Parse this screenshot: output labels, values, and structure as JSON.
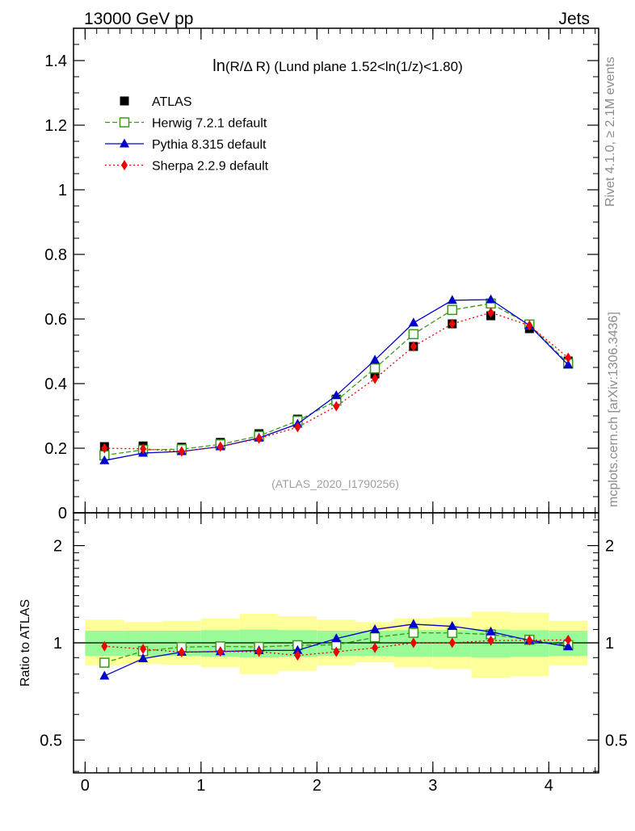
{
  "header": {
    "left": "13000 GeV pp",
    "right": "Jets"
  },
  "side_labels": {
    "rivet": "Rivet 4.1.0, ≥ 2.1M events",
    "mcplots": "mcplots.cern.ch [arXiv:1306.3436]"
  },
  "watermark": "(ATLAS_2020_I1790256)",
  "chart_data": [
    {
      "type": "line",
      "panel": "main",
      "title": "ln(R/Δ R) (Lund plane 1.52<ln(1/z)<1.80)",
      "title_parts": [
        "ln",
        "(R/Δ R)",
        " (Lund plane 1.52<ln(1/z)<1.80)"
      ],
      "xlabel": "",
      "ylabel": "",
      "xlim": [
        -0.1,
        4.43
      ],
      "ylim": [
        0,
        1.5
      ],
      "yticks": [
        0,
        0.2,
        0.4,
        0.6,
        0.8,
        1,
        1.2,
        1.4
      ],
      "ytick_labels": [
        "0",
        "0.2",
        "0.4",
        "0.6",
        "0.8",
        "1",
        "1.2",
        "1.4"
      ],
      "x": [
        0.167,
        0.5,
        0.833,
        1.167,
        1.5,
        1.833,
        2.167,
        2.5,
        2.833,
        3.167,
        3.5,
        3.833,
        4.167
      ],
      "series": [
        {
          "name": "ATLAS",
          "marker": "square-filled",
          "color": "#000000",
          "values": [
            0.205,
            0.207,
            0.203,
            0.218,
            0.245,
            0.29,
            0.352,
            0.43,
            0.515,
            0.585,
            0.61,
            0.57,
            0.47
          ]
        },
        {
          "name": "Herwig 7.2.1 default",
          "marker": "square-open",
          "line": "dashed",
          "color": "#3a9a1a",
          "values": [
            0.178,
            0.195,
            0.197,
            0.212,
            0.238,
            0.285,
            0.347,
            0.447,
            0.553,
            0.628,
            0.648,
            0.583,
            0.462
          ]
        },
        {
          "name": "Pythia 8.315 default",
          "marker": "triangle-filled",
          "line": "solid",
          "color": "#0000cc",
          "values": [
            0.162,
            0.185,
            0.19,
            0.205,
            0.232,
            0.275,
            0.363,
            0.473,
            0.588,
            0.658,
            0.66,
            0.58,
            0.458
          ]
        },
        {
          "name": "Sherpa 2.2.9 default",
          "marker": "diamond-filled",
          "line": "dotted",
          "color": "#ee0000",
          "values": [
            0.2,
            0.198,
            0.19,
            0.205,
            0.23,
            0.265,
            0.33,
            0.415,
            0.515,
            0.585,
            0.62,
            0.58,
            0.48
          ]
        }
      ]
    },
    {
      "type": "line",
      "panel": "ratio",
      "ylabel": "Ratio to ATLAS",
      "xlim": [
        -0.1,
        4.43
      ],
      "ylim": [
        0.4,
        2.4
      ],
      "log_y": true,
      "yticks": [
        0.5,
        1,
        2
      ],
      "ytick_labels": [
        "0.5",
        "1",
        "2"
      ],
      "xticks": [
        0,
        1,
        2,
        3,
        4
      ],
      "xtick_labels": [
        "0",
        "1",
        "2",
        "3",
        "4"
      ],
      "x": [
        0.167,
        0.5,
        0.833,
        1.167,
        1.5,
        1.833,
        2.167,
        2.5,
        2.833,
        3.167,
        3.5,
        3.833,
        4.167
      ],
      "band_stat": {
        "color": "#98fb98",
        "low": [
          0.91,
          0.91,
          0.91,
          0.905,
          0.9,
          0.905,
          0.91,
          0.91,
          0.905,
          0.905,
          0.9,
          0.905,
          0.91
        ],
        "high": [
          1.09,
          1.09,
          1.09,
          1.095,
          1.1,
          1.095,
          1.09,
          1.09,
          1.095,
          1.095,
          1.1,
          1.095,
          1.09
        ]
      },
      "band_total": {
        "color": "#ffff99",
        "low": [
          0.85,
          0.86,
          0.855,
          0.84,
          0.8,
          0.82,
          0.85,
          0.87,
          0.84,
          0.83,
          0.78,
          0.79,
          0.85
        ],
        "high": [
          1.18,
          1.16,
          1.17,
          1.19,
          1.23,
          1.21,
          1.18,
          1.16,
          1.19,
          1.2,
          1.25,
          1.24,
          1.17
        ]
      },
      "series": [
        {
          "name": "Herwig 7.2.1 default",
          "marker": "square-open",
          "line": "dashed",
          "color": "#3a9a1a",
          "values": [
            0.868,
            0.942,
            0.97,
            0.975,
            0.971,
            0.983,
            0.986,
            1.04,
            1.074,
            1.073,
            1.062,
            1.022,
            0.983
          ]
        },
        {
          "name": "Pythia 8.315 default",
          "marker": "triangle-filled",
          "line": "solid",
          "color": "#0000cc",
          "values": [
            0.79,
            0.894,
            0.936,
            0.94,
            0.947,
            0.948,
            1.031,
            1.1,
            1.142,
            1.125,
            1.082,
            1.018,
            0.974
          ]
        },
        {
          "name": "Sherpa 2.2.9 default",
          "marker": "diamond-filled",
          "line": "dotted",
          "color": "#ee0000",
          "values": [
            0.976,
            0.957,
            0.936,
            0.94,
            0.939,
            0.914,
            0.938,
            0.965,
            1.0,
            1.0,
            1.016,
            1.018,
            1.021
          ]
        }
      ]
    }
  ]
}
